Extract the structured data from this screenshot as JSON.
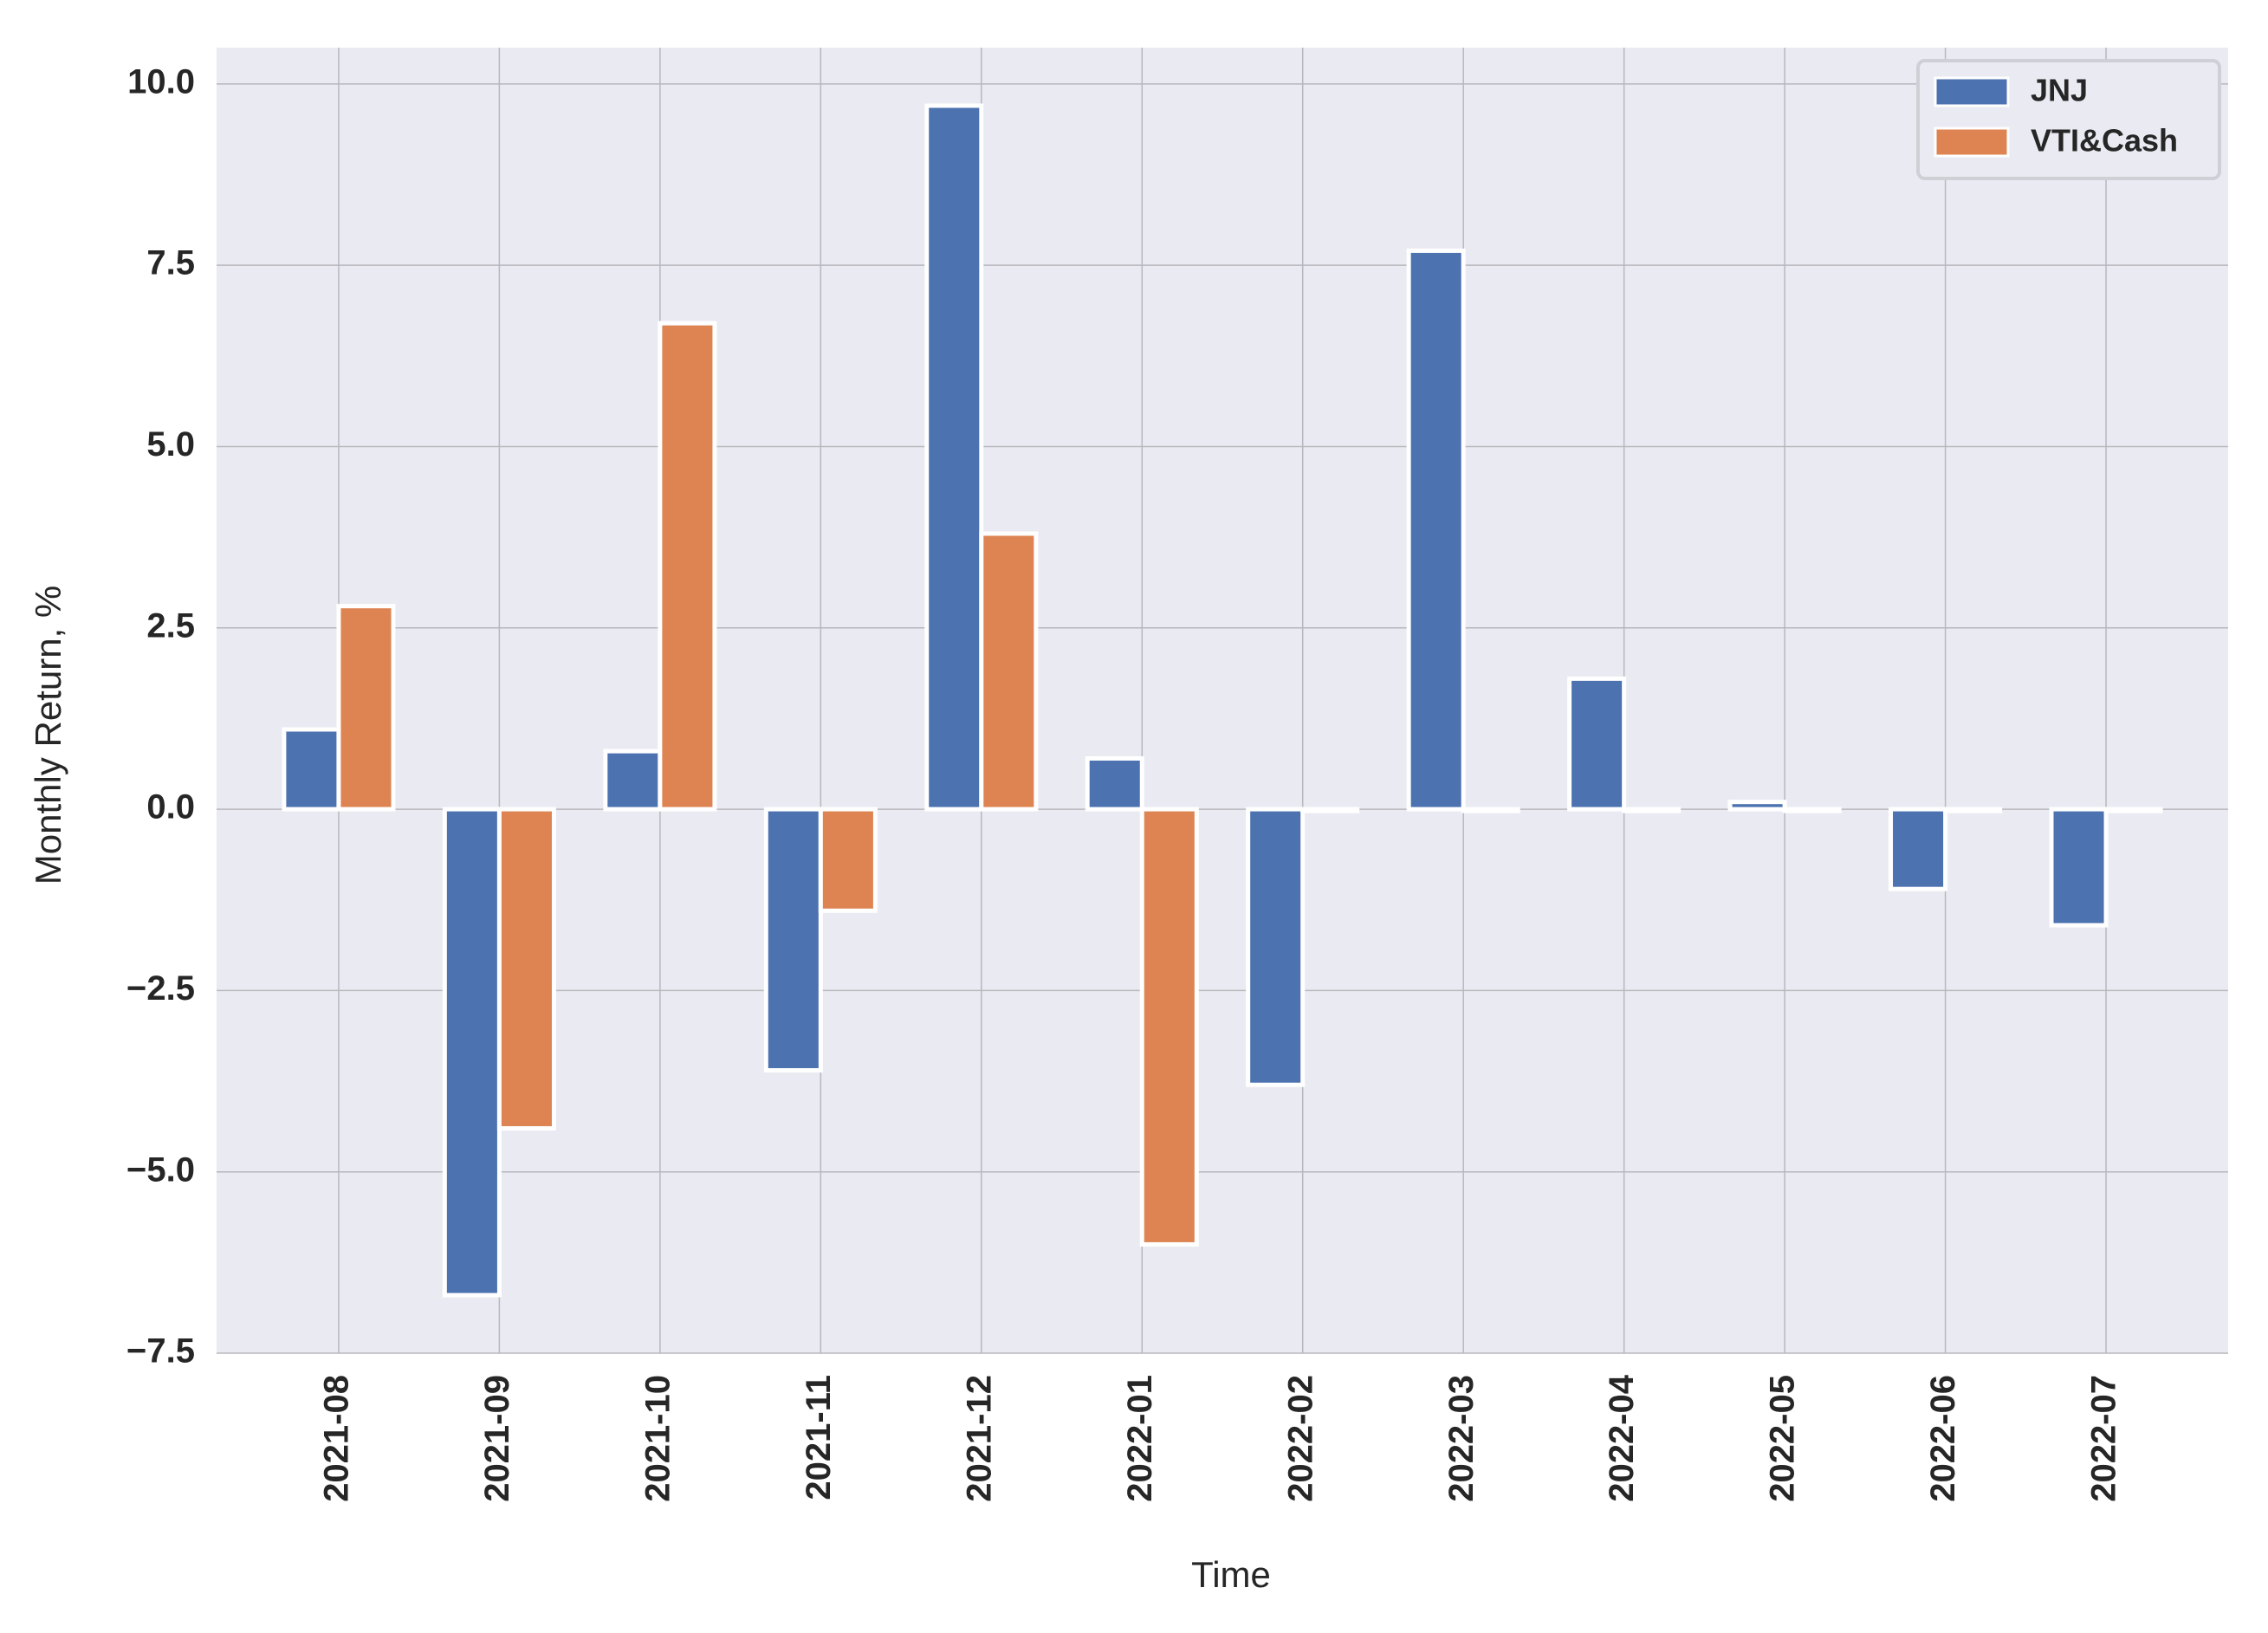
{
  "chart_data": {
    "type": "bar",
    "title": "",
    "xlabel": "Time",
    "ylabel": "Monthly Return, %",
    "categories": [
      "2021-08",
      "2021-09",
      "2021-10",
      "2021-11",
      "2021-12",
      "2022-01",
      "2022-02",
      "2022-03",
      "2022-04",
      "2022-05",
      "2022-06",
      "2022-07"
    ],
    "series": [
      {
        "name": "JNJ",
        "color": "#4c72b0",
        "values": [
          1.1,
          -6.7,
          0.8,
          -3.6,
          9.7,
          0.7,
          -3.8,
          7.7,
          1.8,
          0.1,
          -1.1,
          -1.6
        ]
      },
      {
        "name": "VTI&Cash",
        "color": "#dd8452",
        "values": [
          2.8,
          -4.4,
          6.7,
          -1.4,
          3.8,
          -6.0,
          0.0,
          0.0,
          0.0,
          0.0,
          0.0,
          0.0
        ]
      }
    ],
    "ylim": [
      -7.5,
      10.5
    ],
    "yticks": [
      -7.5,
      -5.0,
      -2.5,
      0.0,
      2.5,
      5.0,
      7.5,
      10.0
    ],
    "ytick_labels": [
      "−7.5",
      "−5.0",
      "−2.5",
      "0.0",
      "2.5",
      "5.0",
      "7.5",
      "10.0"
    ],
    "grid": true,
    "legend_position": "top-right",
    "background": "#eaeaf2"
  }
}
